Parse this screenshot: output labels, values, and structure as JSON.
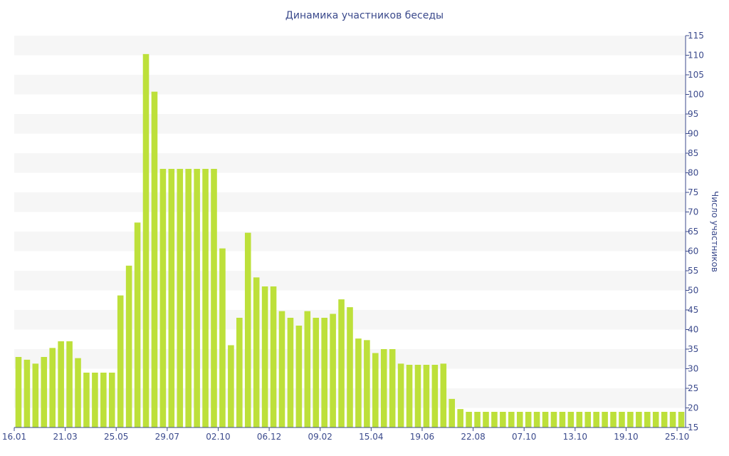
{
  "chart_data": {
    "type": "bar",
    "title": "Динамика участников беседы",
    "xlabel": "",
    "ylabel": "Число участников",
    "ylim": [
      15,
      115
    ],
    "ytick_step": 5,
    "y_axis_position": "right",
    "grid": "alternating horizontal bands",
    "bar_color": "#bde03a",
    "band_color": "#f6f6f6",
    "x_tick_labels": [
      {
        "index": 0,
        "label": "16.01"
      },
      {
        "index": 6,
        "label": "21.03"
      },
      {
        "index": 12,
        "label": "25.05"
      },
      {
        "index": 18,
        "label": "29.07"
      },
      {
        "index": 24,
        "label": "02.10"
      },
      {
        "index": 30,
        "label": "06.12"
      },
      {
        "index": 36,
        "label": "09.02"
      },
      {
        "index": 42,
        "label": "15.04"
      },
      {
        "index": 48,
        "label": "19.06"
      },
      {
        "index": 54,
        "label": "22.08"
      },
      {
        "index": 60,
        "label": "07.10"
      },
      {
        "index": 66,
        "label": "13.10"
      },
      {
        "index": 72,
        "label": "19.10"
      },
      {
        "index": 78,
        "label": "25.10"
      }
    ],
    "values": [
      33,
      32.3,
      31.3,
      33,
      35.3,
      37,
      37,
      32.7,
      29,
      29,
      29,
      29,
      48.7,
      56.3,
      67.3,
      110.3,
      100.7,
      81,
      81,
      81,
      81,
      81,
      81,
      81,
      60.7,
      36,
      43,
      64.7,
      53.3,
      51,
      51,
      44.7,
      43,
      41,
      44.7,
      43,
      43,
      44,
      47.7,
      45.7,
      37.7,
      37.3,
      34,
      35,
      35,
      31.3,
      31,
      31,
      31,
      31,
      31.3,
      22.3,
      19.7,
      19,
      19,
      19,
      19,
      19,
      19,
      19,
      19,
      19,
      19,
      19,
      19,
      19,
      19,
      19,
      19,
      19,
      19,
      19,
      19,
      19,
      19,
      19,
      19,
      19,
      19
    ]
  }
}
